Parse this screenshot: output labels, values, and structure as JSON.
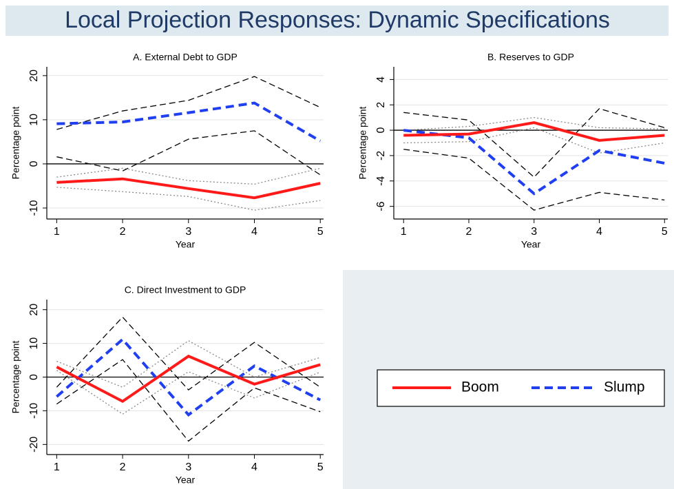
{
  "title": "Local Projection Responses: Dynamic Specifications",
  "chart_data": [
    {
      "type": "line",
      "title": "A. External Debt to GDP",
      "x_label": "Year",
      "y_label": "Percentage point",
      "x": [
        1,
        2,
        3,
        4,
        5
      ],
      "xlim": [
        0.85,
        5.05
      ],
      "xticks": [
        1,
        2,
        3,
        4,
        5
      ],
      "ylim": [
        -12.5,
        22
      ],
      "yticks": [
        -10,
        0,
        10,
        20
      ],
      "grid": true,
      "hline": 0,
      "series": [
        {
          "name": "Boom",
          "color": "#ff1a1a",
          "style": "solid",
          "values": [
            -4.2,
            -3.4,
            -5.6,
            -7.7,
            -4.4
          ]
        },
        {
          "name": "Slump",
          "color": "#1f3ff0",
          "style": "dashed",
          "values": [
            9.1,
            9.5,
            11.6,
            13.8,
            5.2
          ]
        },
        {
          "color": "#000000",
          "style": "longdash",
          "values": [
            7.8,
            12,
            14.4,
            19.8,
            12.8
          ]
        },
        {
          "color": "#000000",
          "style": "longdash",
          "values": [
            1.6,
            -1.6,
            5.6,
            7.5,
            -2.5
          ]
        },
        {
          "color": "#888888",
          "style": "dotted",
          "values": [
            -3,
            -1,
            -3.8,
            -4.6,
            -1
          ]
        },
        {
          "color": "#888888",
          "style": "dotted",
          "values": [
            -5.3,
            -6.3,
            -7.4,
            -10.5,
            -8.3
          ]
        }
      ]
    },
    {
      "type": "line",
      "title": "B. Reserves to GDP",
      "x_label": "Year",
      "y_label": "Percentage point",
      "x": [
        1,
        2,
        3,
        4,
        5
      ],
      "xlim": [
        0.85,
        5.05
      ],
      "xticks": [
        1,
        2,
        3,
        4,
        5
      ],
      "ylim": [
        -7,
        5
      ],
      "yticks": [
        -6,
        -4,
        -2,
        0,
        2,
        4
      ],
      "grid": true,
      "hline": 0,
      "series": [
        {
          "name": "Boom",
          "color": "#ff1a1a",
          "style": "solid",
          "values": [
            -0.4,
            -0.3,
            0.6,
            -0.8,
            -0.4
          ]
        },
        {
          "name": "Slump",
          "color": "#1f3ff0",
          "style": "dashed",
          "values": [
            0,
            -0.6,
            -5,
            -1.6,
            -2.6
          ]
        },
        {
          "color": "#000000",
          "style": "longdash",
          "values": [
            1.4,
            0.8,
            -3.7,
            1.7,
            0.2
          ]
        },
        {
          "color": "#000000",
          "style": "longdash",
          "values": [
            -1.5,
            -2.2,
            -6.3,
            -4.9,
            -5.5
          ]
        },
        {
          "color": "#888888",
          "style": "dotted",
          "values": [
            0,
            0.3,
            1,
            0.2,
            0.1
          ]
        },
        {
          "color": "#888888",
          "style": "dotted",
          "values": [
            -1,
            -0.9,
            0.2,
            -1.8,
            -1
          ]
        }
      ]
    },
    {
      "type": "line",
      "title": "C. Direct Investment to GDP",
      "x_label": "Year",
      "y_label": "Percentage point",
      "x": [
        1,
        2,
        3,
        4,
        5
      ],
      "xlim": [
        0.85,
        5.05
      ],
      "xticks": [
        1,
        2,
        3,
        4,
        5
      ],
      "ylim": [
        -23,
        23
      ],
      "yticks": [
        -20,
        -10,
        0,
        10,
        20
      ],
      "grid": true,
      "hline": 0,
      "series": [
        {
          "name": "Boom",
          "color": "#ff1a1a",
          "style": "solid",
          "values": [
            3,
            -7.2,
            6.2,
            -2.1,
            3.7
          ]
        },
        {
          "name": "Slump",
          "color": "#1f3ff0",
          "style": "dashed",
          "values": [
            -5.8,
            11.2,
            -11.2,
            3.3,
            -6.8
          ]
        },
        {
          "color": "#000000",
          "style": "longdash",
          "values": [
            -3,
            17.8,
            -3.8,
            10.3,
            -3
          ]
        },
        {
          "color": "#000000",
          "style": "longdash",
          "values": [
            -8,
            5.2,
            -19,
            -3.2,
            -10.3
          ]
        },
        {
          "color": "#888888",
          "style": "dotted",
          "values": [
            4.7,
            -3,
            10.8,
            0,
            5.8
          ]
        },
        {
          "color": "#888888",
          "style": "dotted",
          "values": [
            2,
            -11,
            1.6,
            -6.2,
            1.5
          ]
        }
      ]
    }
  ]
}
